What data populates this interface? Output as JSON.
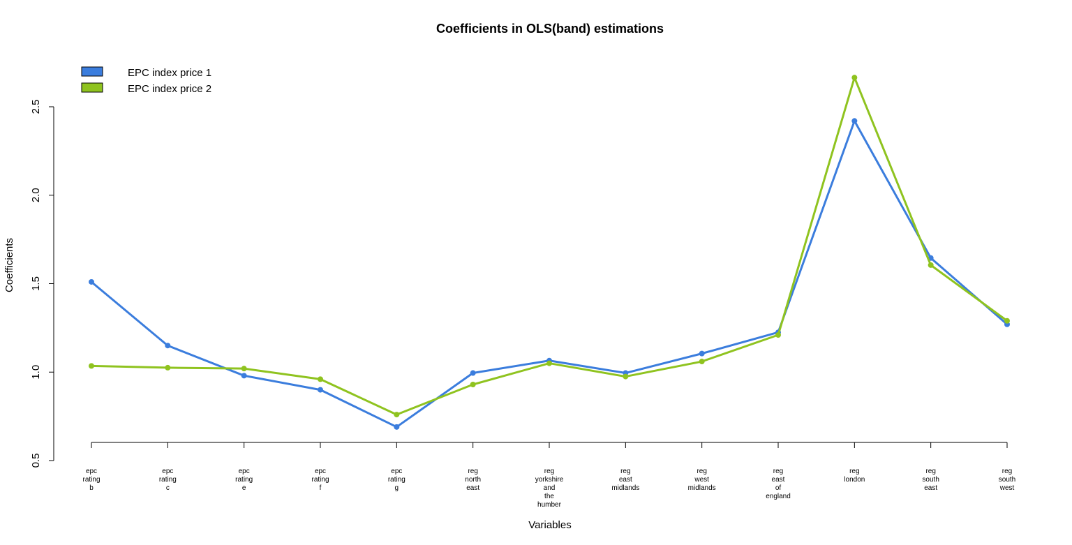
{
  "chart_data": {
    "type": "line",
    "title": "Coefficients in OLS(band) estimations",
    "xlabel": "Variables",
    "ylabel": "Coefficients",
    "ylim": [
      0.5,
      2.7
    ],
    "yticks": [
      "0.5",
      "1.0",
      "1.5",
      "2.0",
      "2.5"
    ],
    "ytick_values": [
      0.5,
      1.0,
      1.5,
      2.0,
      2.5
    ],
    "categories": [
      "epc rating b",
      "epc rating c",
      "epc rating e",
      "epc rating f",
      "epc rating g",
      "reg north east",
      "reg yorkshire and the humber",
      "reg east midlands",
      "reg west midlands",
      "reg east of england",
      "reg london",
      "reg south east",
      "reg south west"
    ],
    "category_lines": [
      [
        "epc",
        "rating",
        "b"
      ],
      [
        "epc",
        "rating",
        "c"
      ],
      [
        "epc",
        "rating",
        "e"
      ],
      [
        "epc",
        "rating",
        "f"
      ],
      [
        "epc",
        "rating",
        "g"
      ],
      [
        "reg",
        "north",
        "east"
      ],
      [
        "reg",
        "yorkshire",
        "and",
        "the",
        "humber"
      ],
      [
        "reg",
        "east",
        "midlands"
      ],
      [
        "reg",
        "west",
        "midlands"
      ],
      [
        "reg",
        "east",
        "of",
        "england"
      ],
      [
        "reg",
        "london"
      ],
      [
        "reg",
        "south",
        "east"
      ],
      [
        "reg",
        "south",
        "west"
      ]
    ],
    "series": [
      {
        "name": "EPC index price 1",
        "color": "#3b7ddd",
        "values": [
          1.51,
          1.15,
          0.98,
          0.9,
          0.69,
          0.995,
          1.065,
          0.995,
          1.105,
          1.225,
          2.42,
          1.645,
          1.27
        ]
      },
      {
        "name": "EPC index price 2",
        "color": "#8fc31f",
        "values": [
          1.035,
          1.025,
          1.02,
          0.96,
          0.76,
          0.93,
          1.05,
          0.975,
          1.06,
          1.21,
          2.665,
          1.605,
          1.29
        ]
      }
    ],
    "legend": "top-left",
    "grid": false
  }
}
